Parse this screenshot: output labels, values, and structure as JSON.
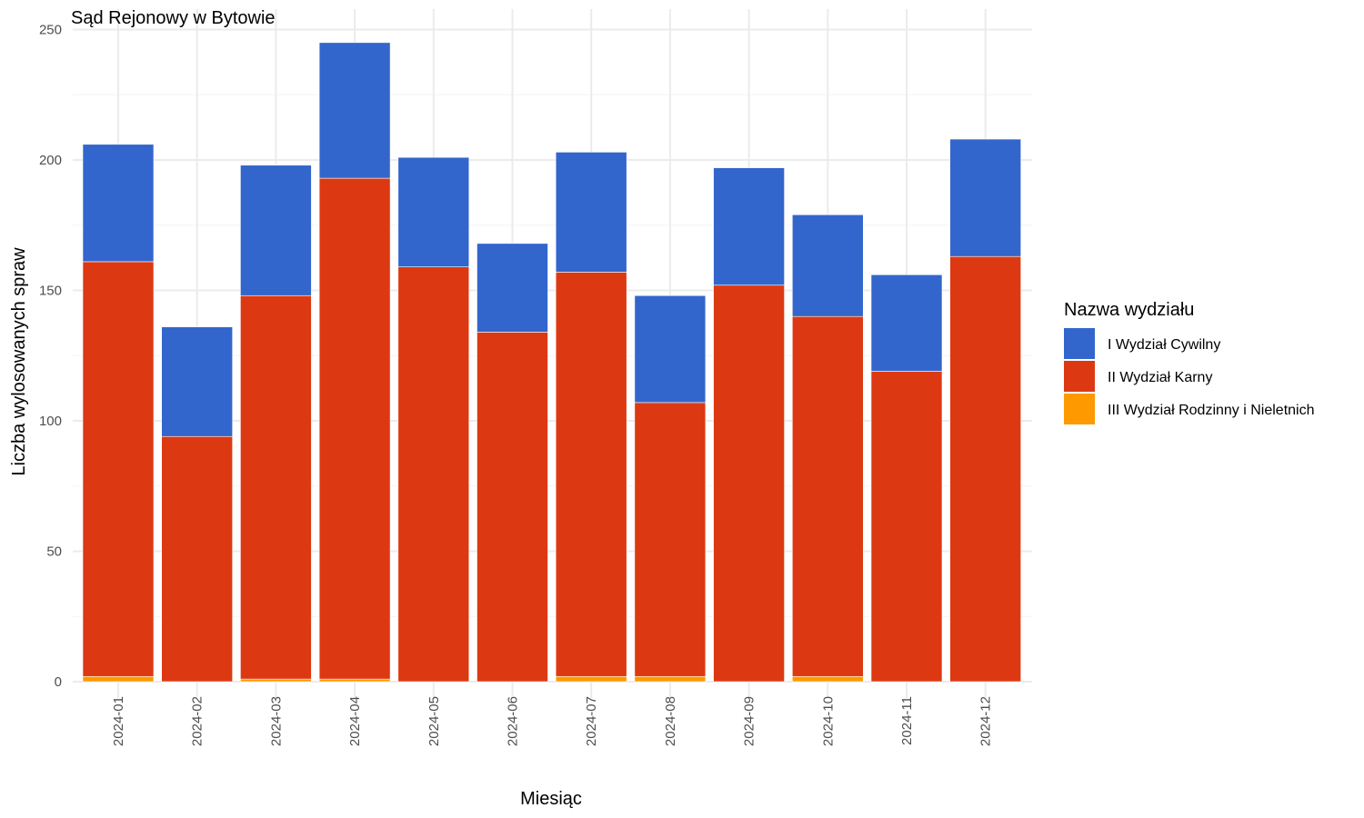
{
  "chart_data": {
    "type": "bar",
    "stacked": true,
    "title": "Sąd Rejonowy w Bytowie",
    "xlabel": "Miesiąc",
    "ylabel": "Liczba wylosowanych spraw",
    "ylim": [
      0,
      250
    ],
    "yticks": [
      0,
      50,
      100,
      150,
      200,
      250
    ],
    "grid": true,
    "legend_position": "right",
    "legend_title": "Nazwa wydziału",
    "categories": [
      "2024-01",
      "2024-02",
      "2024-03",
      "2024-04",
      "2024-05",
      "2024-06",
      "2024-07",
      "2024-08",
      "2024-09",
      "2024-10",
      "2024-11",
      "2024-12"
    ],
    "series": [
      {
        "name": "I Wydział Cywilny",
        "color": "#3366cc",
        "values": [
          45,
          42,
          50,
          52,
          42,
          34,
          46,
          41,
          45,
          39,
          37,
          45
        ]
      },
      {
        "name": "II Wydział Karny",
        "color": "#dc3912",
        "values": [
          159,
          94,
          147,
          192,
          159,
          134,
          155,
          105,
          152,
          138,
          119,
          163
        ]
      },
      {
        "name": "III Wydział Rodzinny i Nieletnich",
        "color": "#ff9900",
        "values": [
          2,
          0,
          1,
          1,
          0,
          0,
          2,
          2,
          0,
          2,
          0,
          0
        ]
      }
    ]
  }
}
